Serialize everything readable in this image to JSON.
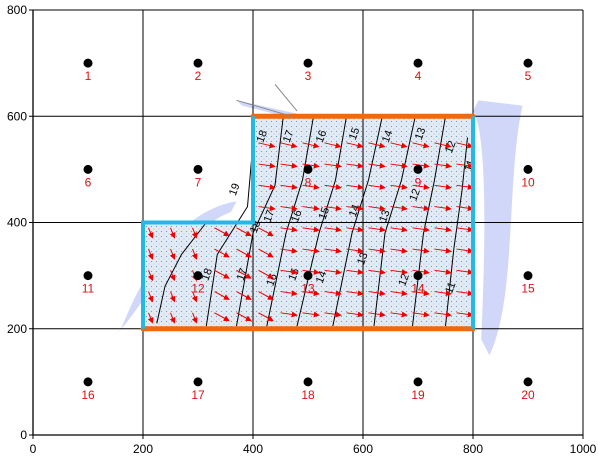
{
  "chart_data": {
    "type": "scatter",
    "title": "",
    "xlabel": "",
    "ylabel": "",
    "xlim": [
      0,
      1000
    ],
    "ylim": [
      0,
      800
    ],
    "x_ticks": [
      0,
      200,
      400,
      600,
      800,
      1000
    ],
    "y_ticks": [
      0,
      200,
      400,
      600,
      800
    ],
    "grid": true,
    "grid_spacing": 200,
    "wells": [
      {
        "label": "1",
        "x": 100,
        "y": 700
      },
      {
        "label": "2",
        "x": 300,
        "y": 700
      },
      {
        "label": "3",
        "x": 500,
        "y": 700
      },
      {
        "label": "4",
        "x": 700,
        "y": 700
      },
      {
        "label": "5",
        "x": 900,
        "y": 700
      },
      {
        "label": "6",
        "x": 100,
        "y": 500
      },
      {
        "label": "7",
        "x": 300,
        "y": 500
      },
      {
        "label": "8",
        "x": 500,
        "y": 500
      },
      {
        "label": "9",
        "x": 700,
        "y": 500
      },
      {
        "label": "10",
        "x": 900,
        "y": 500
      },
      {
        "label": "11",
        "x": 100,
        "y": 300
      },
      {
        "label": "12",
        "x": 300,
        "y": 300
      },
      {
        "label": "13",
        "x": 500,
        "y": 300
      },
      {
        "label": "14",
        "x": 700,
        "y": 300
      },
      {
        "label": "15",
        "x": 900,
        "y": 300
      },
      {
        "label": "16",
        "x": 100,
        "y": 100
      },
      {
        "label": "17",
        "x": 300,
        "y": 100
      },
      {
        "label": "18",
        "x": 500,
        "y": 100
      },
      {
        "label": "19",
        "x": 700,
        "y": 100
      },
      {
        "label": "20",
        "x": 900,
        "y": 100
      }
    ],
    "domain_polygon": [
      [
        200,
        200
      ],
      [
        800,
        200
      ],
      [
        800,
        600
      ],
      [
        400,
        600
      ],
      [
        400,
        400
      ],
      [
        200,
        400
      ]
    ],
    "constant_head_boundaries": [
      {
        "points": [
          [
            200,
            200
          ],
          [
            200,
            400
          ],
          [
            400,
            400
          ],
          [
            400,
            600
          ]
        ]
      },
      {
        "points": [
          [
            800,
            200
          ],
          [
            800,
            600
          ]
        ]
      }
    ],
    "no_flow_boundaries": [
      {
        "points": [
          [
            200,
            200
          ],
          [
            800,
            200
          ]
        ]
      },
      {
        "points": [
          [
            400,
            600
          ],
          [
            800,
            600
          ]
        ]
      }
    ],
    "contours": [
      {
        "value": "19",
        "points": [
          [
            315,
            400
          ],
          [
            270,
            340
          ],
          [
            240,
            280
          ],
          [
            225,
            210
          ]
        ]
      },
      {
        "value": "18",
        "points": [
          [
            400,
            550
          ],
          [
            390,
            430
          ],
          [
            335,
            340
          ],
          [
            315,
            205
          ]
        ]
      },
      {
        "value": "17",
        "points": [
          [
            455,
            600
          ],
          [
            440,
            470
          ],
          [
            400,
            380
          ],
          [
            370,
            205
          ]
        ]
      },
      {
        "value": "16",
        "points": [
          [
            510,
            600
          ],
          [
            490,
            480
          ],
          [
            460,
            380
          ],
          [
            425,
            205
          ]
        ]
      },
      {
        "value": "15",
        "points": [
          [
            570,
            600
          ],
          [
            550,
            480
          ],
          [
            520,
            380
          ],
          [
            480,
            205
          ]
        ]
      },
      {
        "value": "14",
        "points": [
          [
            635,
            600
          ],
          [
            610,
            480
          ],
          [
            580,
            380
          ],
          [
            545,
            205
          ]
        ]
      },
      {
        "value": "13",
        "points": [
          [
            695,
            600
          ],
          [
            670,
            480
          ],
          [
            640,
            380
          ],
          [
            620,
            205
          ]
        ]
      },
      {
        "value": "12",
        "points": [
          [
            750,
            600
          ],
          [
            730,
            480
          ],
          [
            710,
            380
          ],
          [
            690,
            205
          ]
        ]
      },
      {
        "value": "11",
        "points": [
          [
            790,
            560
          ],
          [
            780,
            460
          ],
          [
            765,
            350
          ],
          [
            750,
            205
          ]
        ]
      }
    ],
    "contour_labels": [
      {
        "text": "19",
        "x": 372,
        "y": 460
      },
      {
        "text": "18",
        "x": 422,
        "y": 560
      },
      {
        "text": "18",
        "x": 410,
        "y": 390
      },
      {
        "text": "18",
        "x": 322,
        "y": 300
      },
      {
        "text": "17",
        "x": 470,
        "y": 560
      },
      {
        "text": "17",
        "x": 435,
        "y": 410
      },
      {
        "text": "17",
        "x": 386,
        "y": 300
      },
      {
        "text": "16",
        "x": 530,
        "y": 560
      },
      {
        "text": "16",
        "x": 485,
        "y": 410
      },
      {
        "text": "16",
        "x": 440,
        "y": 290
      },
      {
        "text": "15",
        "x": 590,
        "y": 565
      },
      {
        "text": "15",
        "x": 535,
        "y": 415
      },
      {
        "text": "15",
        "x": 480,
        "y": 300
      },
      {
        "text": "14",
        "x": 650,
        "y": 560
      },
      {
        "text": "14",
        "x": 590,
        "y": 420
      },
      {
        "text": "14",
        "x": 530,
        "y": 295
      },
      {
        "text": "13",
        "x": 710,
        "y": 565
      },
      {
        "text": "13",
        "x": 645,
        "y": 410
      },
      {
        "text": "13",
        "x": 605,
        "y": 330
      },
      {
        "text": "12",
        "x": 765,
        "y": 540
      },
      {
        "text": "12",
        "x": 700,
        "y": 450
      },
      {
        "text": "12",
        "x": 680,
        "y": 290
      },
      {
        "text": "11",
        "x": 800,
        "y": 505
      },
      {
        "text": "11",
        "x": 765,
        "y": 275
      }
    ],
    "velocity_field": {
      "x_start": 210,
      "x_end": 780,
      "dx": 40,
      "y_start": 230,
      "y_end": 580,
      "dy": 40,
      "arrow_color": "#ee0000"
    },
    "colors": {
      "grid": "#000000",
      "constant_head": "#22b8e8",
      "no_flow": "#ee6a10",
      "domain_fill": "#dde6f0",
      "domain_stipple": "#7a9fc8",
      "wells": "#000000",
      "well_labels": "#e01010",
      "contours": "#000000",
      "vectors": "#ee0000",
      "river_band": "#9aa6f2"
    }
  }
}
